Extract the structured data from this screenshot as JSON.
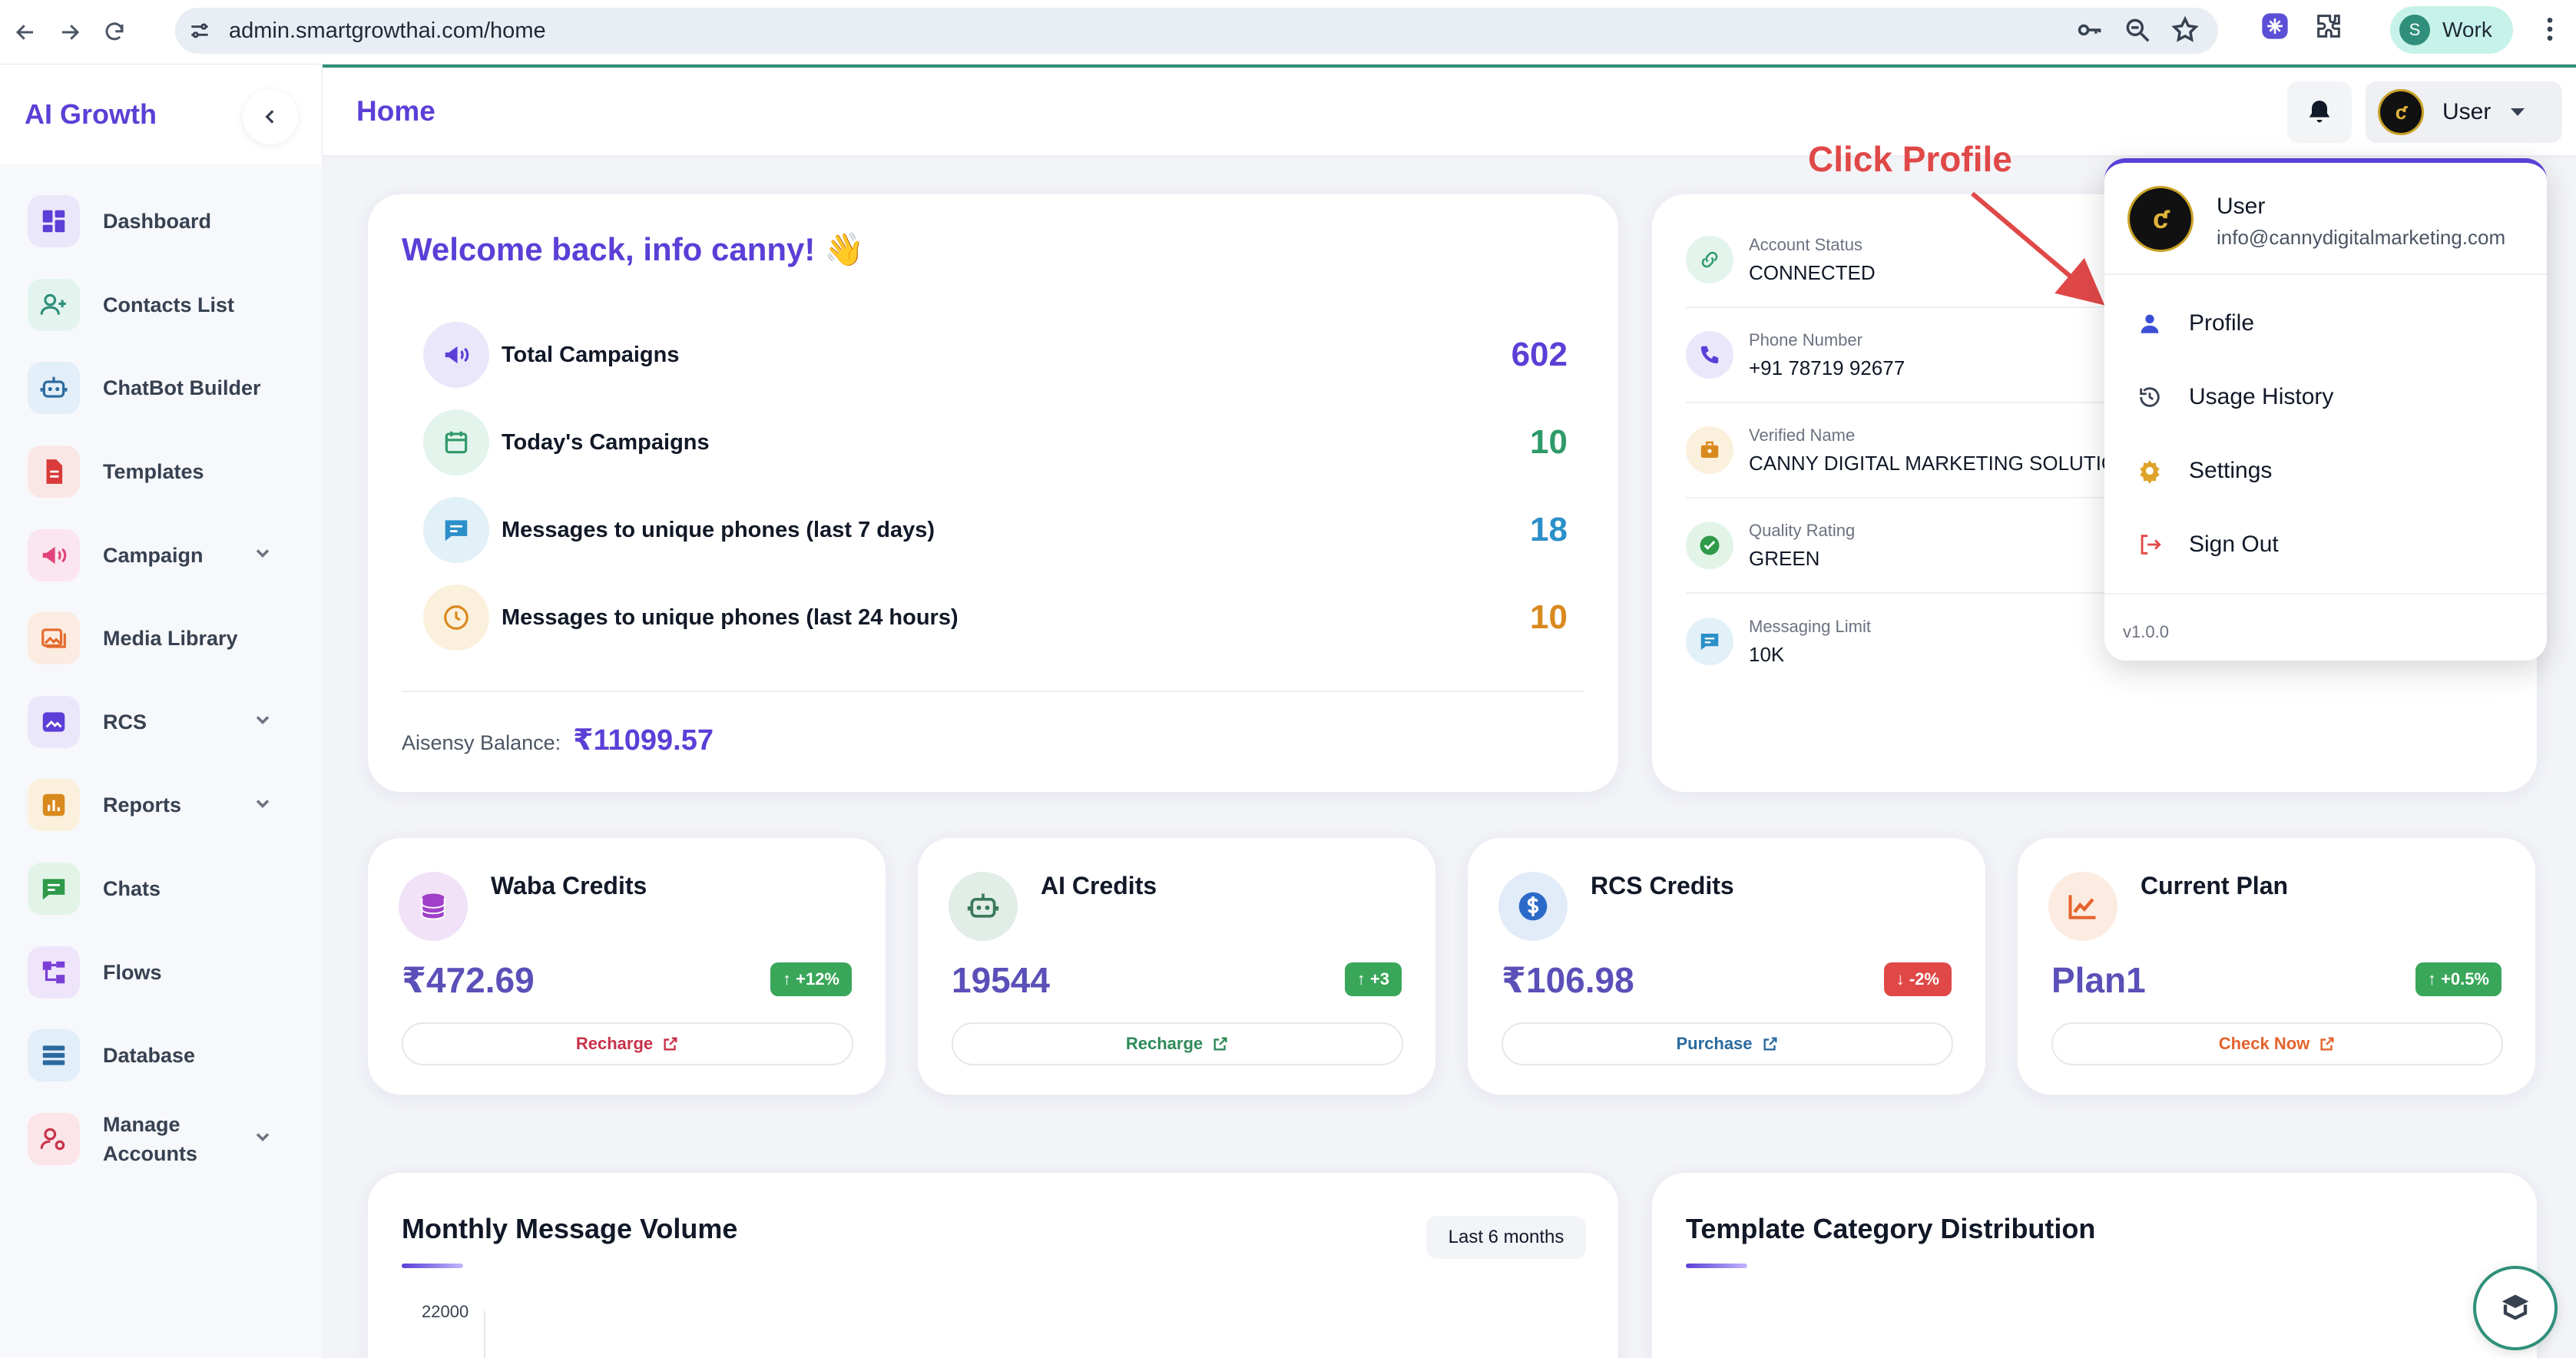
{
  "browser": {
    "url": "admin.smartgrowthai.com/home",
    "profile_initial": "S",
    "profile_label": "Work"
  },
  "sidebar": {
    "brand": "AI Growth",
    "items": [
      {
        "label": "Dashboard",
        "icon": "dashboard-icon",
        "color": "#5b3fd6",
        "bg": "#ebe7fb",
        "chevron": false
      },
      {
        "label": "Contacts List",
        "icon": "add-user-icon",
        "color": "#2f8f7a",
        "bg": "#e3f4ef",
        "chevron": false
      },
      {
        "label": "ChatBot Builder",
        "icon": "robot-icon",
        "color": "#2b6a9e",
        "bg": "#e2eef8",
        "chevron": false
      },
      {
        "label": "Templates",
        "icon": "document-icon",
        "color": "#d93a3a",
        "bg": "#fbe6e6",
        "chevron": false
      },
      {
        "label": "Campaign",
        "icon": "megaphone-icon",
        "color": "#e0447a",
        "bg": "#fbe5ee",
        "chevron": true
      },
      {
        "label": "Media Library",
        "icon": "image-gallery-icon",
        "color": "#e46a2c",
        "bg": "#fcebe0",
        "chevron": false
      },
      {
        "label": "RCS",
        "icon": "rcs-image-icon",
        "color": "#5b3fd6",
        "bg": "#ebe7fb",
        "chevron": true
      },
      {
        "label": "Reports",
        "icon": "bar-chart-icon",
        "color": "#d98a1e",
        "bg": "#fbf0dc",
        "chevron": true
      },
      {
        "label": "Chats",
        "icon": "chat-icon",
        "color": "#2f9a4a",
        "bg": "#e2f4e7",
        "chevron": false
      },
      {
        "label": "Flows",
        "icon": "flow-icon",
        "color": "#7a3fd6",
        "bg": "#efe5fb",
        "chevron": false
      },
      {
        "label": "Database",
        "icon": "database-list-icon",
        "color": "#2b6a9e",
        "bg": "#e2eef8",
        "chevron": false
      },
      {
        "label": "Manage Accounts",
        "icon": "manage-users-icon",
        "color": "#c8324a",
        "bg": "#fbe5e9",
        "chevron": true
      }
    ]
  },
  "header": {
    "title": "Home",
    "user_label": "User"
  },
  "welcome": {
    "title": "Welcome back, info canny! 👋",
    "stats": [
      {
        "label": "Total Campaigns",
        "value": "602",
        "color": "#5b3fd6",
        "bg": "#ebe7fb",
        "icon": "megaphone-icon"
      },
      {
        "label": "Today's Campaigns",
        "value": "10",
        "color": "#2f9a6a",
        "bg": "#e3f4ec",
        "icon": "calendar-icon"
      },
      {
        "label": "Messages to unique phones (last 7 days)",
        "value": "18",
        "color": "#2b8fc9",
        "bg": "#e2f0f8",
        "icon": "message-icon"
      },
      {
        "label": "Messages to unique phones (last 24 hours)",
        "value": "10",
        "color": "#d98a1e",
        "bg": "#fbf0dc",
        "icon": "clock-icon"
      }
    ],
    "balance_label": "Aisensy Balance:",
    "balance_value": "₹11099.57"
  },
  "account": {
    "rows": [
      {
        "key": "Account Status",
        "value": "CONNECTED",
        "icon": "link-icon",
        "color": "#2f9a6a",
        "bg": "#e3f4ec"
      },
      {
        "key": "Phone Number",
        "value": "+91 78719 92677",
        "icon": "phone-icon",
        "color": "#5b3fd6",
        "bg": "#ebe7fb"
      },
      {
        "key": "Verified Name",
        "value": "CANNY DIGITAL MARKETING SOLUTIONS",
        "icon": "badge-icon",
        "color": "#d98a1e",
        "bg": "#fbf0dc"
      },
      {
        "key": "Quality Rating",
        "value": "GREEN",
        "icon": "check-circle-icon",
        "color": "#2f9a4a",
        "bg": "#e2f4e7"
      },
      {
        "key": "Messaging Limit",
        "value": "10K",
        "icon": "message-icon",
        "color": "#2b8fc9",
        "bg": "#e2f0f8"
      }
    ]
  },
  "credits": [
    {
      "title": "Waba Credits",
      "value": "₹472.69",
      "badge": "↑ +12%",
      "badge_color": "#3aa65a",
      "action": "Recharge",
      "action_color": "#c8324a",
      "icon": "coins-icon",
      "icon_color": "#a03fc8",
      "icon_bg": "#f1e2f8"
    },
    {
      "title": "AI Credits",
      "value": "19544",
      "badge": "↑ +3",
      "badge_color": "#3aa65a",
      "action": "Recharge",
      "action_color": "#2f8a5a",
      "icon": "robot-icon",
      "icon_color": "#3a7a5a",
      "icon_bg": "#e1ede6"
    },
    {
      "title": "RCS Credits",
      "value": "₹106.98",
      "badge": "↓ -2%",
      "badge_color": "#e04848",
      "action": "Purchase",
      "action_color": "#2b6a9e",
      "icon": "dollar-icon",
      "icon_color": "#2b6ac9",
      "icon_bg": "#e2ecf8"
    },
    {
      "title": "Current Plan",
      "value": "Plan1",
      "badge": "↑ +0.5%",
      "badge_color": "#3aa65a",
      "action": "Check Now",
      "action_color": "#e4632c",
      "icon": "trend-icon",
      "icon_color": "#e4632c",
      "icon_bg": "#fcebe0"
    }
  ],
  "charts": {
    "monthly_title": "Monthly Message Volume",
    "monthly_range": "Last 6 months",
    "monthly_ytick": "22000",
    "template_title": "Template Category Distribution"
  },
  "dropdown": {
    "name": "User",
    "email": "info@cannydigitalmarketing.com",
    "items": [
      {
        "label": "Profile",
        "icon": "person-icon",
        "color": "#3b4fd6"
      },
      {
        "label": "Usage History",
        "icon": "history-icon",
        "color": "#374151"
      },
      {
        "label": "Settings",
        "icon": "gear-icon",
        "color": "#e0a32a"
      },
      {
        "label": "Sign Out",
        "icon": "logout-icon",
        "color": "#e04848"
      }
    ],
    "version": "v1.0.0"
  },
  "annotation": {
    "text": "Click Profile",
    "color": "#e04848"
  }
}
